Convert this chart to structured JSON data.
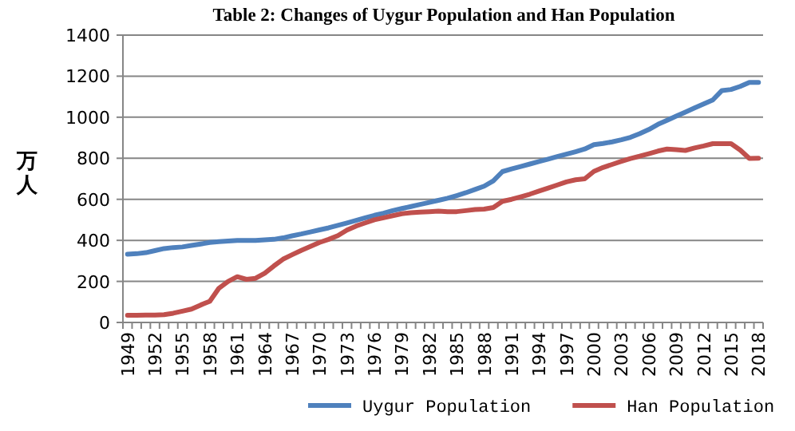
{
  "chart_data": {
    "type": "line",
    "title": "Table 2: Changes of Uygur Population and  Han Population",
    "ylabel": "万人",
    "categories": [
      "1949",
      null,
      null,
      "1952",
      null,
      null,
      "1955",
      null,
      null,
      "1958",
      null,
      null,
      "1961",
      null,
      null,
      "1964",
      null,
      null,
      "1967",
      null,
      null,
      "1970",
      null,
      null,
      "1973",
      null,
      null,
      "1976",
      null,
      null,
      "1979",
      null,
      null,
      "1982",
      null,
      null,
      "1985",
      null,
      null,
      "1988",
      null,
      null,
      "1991",
      null,
      null,
      "1994",
      null,
      null,
      "1997",
      null,
      null,
      "2000",
      null,
      null,
      "2003",
      null,
      null,
      "2006",
      null,
      null,
      "2009",
      null,
      null,
      "2012",
      null,
      null,
      "2015",
      null,
      null,
      "2018"
    ],
    "series": [
      {
        "name": "Uygur Population",
        "color": "#4f81bd",
        "values": [
          333,
          335,
          340,
          350,
          360,
          365,
          368,
          375,
          382,
          390,
          394,
          397,
          400,
          400,
          400,
          402,
          405,
          412,
          422,
          431,
          441,
          451,
          461,
          473,
          485,
          497,
          510,
          522,
          532,
          545,
          555,
          565,
          575,
          585,
          595,
          605,
          618,
          632,
          648,
          664,
          690,
          735,
          748,
          760,
          772,
          784,
          796,
          808,
          820,
          832,
          845,
          866,
          872,
          880,
          890,
          902,
          920,
          940,
          965,
          985,
          1005,
          1025,
          1045,
          1065,
          1084,
          1130,
          1135,
          1150,
          1170,
          1170
        ]
      },
      {
        "name": "Han Population",
        "color": "#c0504d",
        "values": [
          35,
          35,
          36,
          36,
          38,
          45,
          55,
          65,
          85,
          103,
          167,
          200,
          223,
          210,
          215,
          240,
          275,
          308,
          330,
          351,
          370,
          390,
          405,
          423,
          450,
          470,
          485,
          500,
          510,
          520,
          530,
          535,
          538,
          540,
          542,
          540,
          540,
          545,
          550,
          552,
          560,
          590,
          600,
          612,
          625,
          640,
          655,
          670,
          685,
          695,
          700,
          736,
          755,
          770,
          785,
          799,
          810,
          822,
          835,
          845,
          842,
          838,
          850,
          860,
          871,
          871,
          871,
          840,
          799,
          800
        ]
      }
    ],
    "ylim": [
      0,
      1400
    ],
    "yticks": [
      0,
      200,
      400,
      600,
      800,
      1000,
      1200,
      1400
    ],
    "grid": "y",
    "legend": "bottom",
    "marker": "none",
    "line_style": "solid"
  }
}
